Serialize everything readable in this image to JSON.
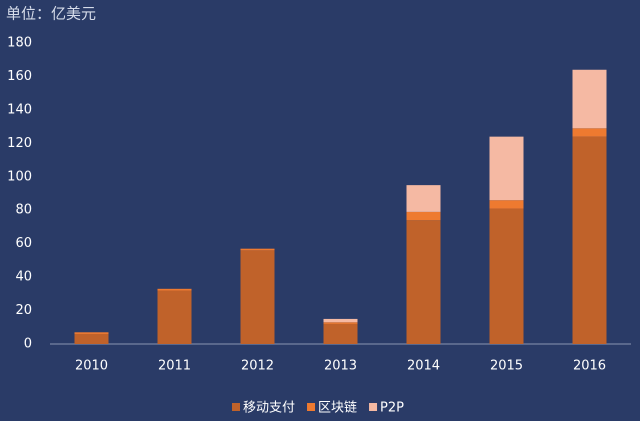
{
  "chart_data": {
    "type": "stacked_bar",
    "title": "单位：亿美元",
    "categories": [
      "2010",
      "2011",
      "2012",
      "2013",
      "2014",
      "2015",
      "2016"
    ],
    "series": [
      {
        "name": "移动支付",
        "color": "#c0622a",
        "values": [
          6,
          32,
          56,
          12,
          74,
          81,
          124
        ]
      },
      {
        "name": "区块链",
        "color": "#ee7a30",
        "values": [
          1,
          1,
          1,
          1,
          5,
          5,
          5
        ]
      },
      {
        "name": "P2P",
        "color": "#f5b9a3",
        "values": [
          0,
          0,
          0,
          2,
          16,
          38,
          35
        ]
      }
    ],
    "ylim": [
      0,
      180
    ],
    "yticks": [
      0,
      20,
      40,
      60,
      80,
      100,
      120,
      140,
      160,
      180
    ],
    "grid": false
  }
}
